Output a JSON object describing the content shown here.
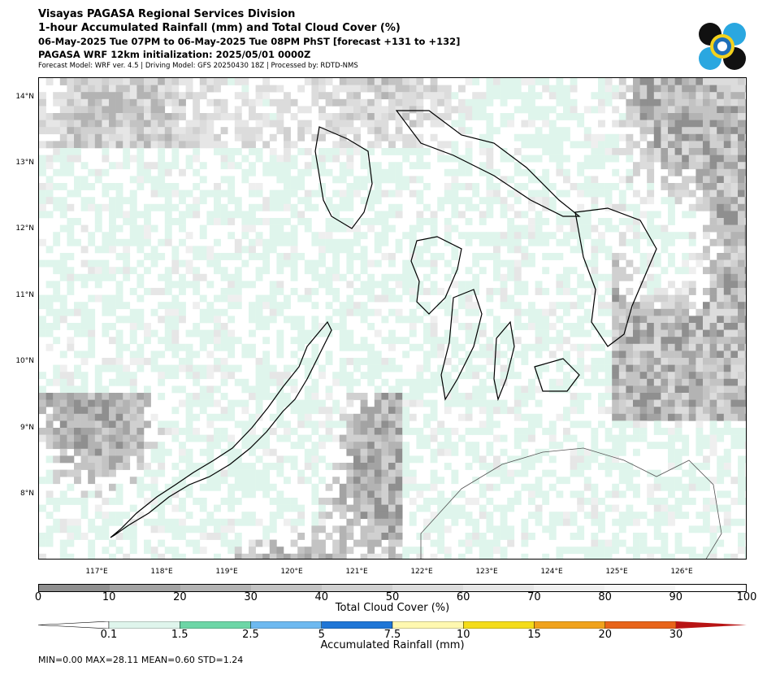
{
  "header": {
    "line1": "Visayas PAGASA Regional Services Division",
    "line2": "1-hour Accumulated Rainfall (mm) and Total Cloud Cover (%)",
    "line3": "06-May-2025 Tue 07PM to 06-May-2025 Tue 08PM PhST [forecast +131 to +132]",
    "line4": "PAGASA WRF 12km initialization: 2025/05/01 0000Z",
    "line5": "Forecast Model: WRF ver. 4.5 | Driving Model: GFS 20250430 18Z | Processed by: RDTD-NMS"
  },
  "map": {
    "lat_labels": [
      "14°N",
      "13°N",
      "12°N",
      "11°N",
      "10°N",
      "9°N",
      "8°N"
    ],
    "lon_labels": [
      "117°E",
      "118°E",
      "119°E",
      "120°E",
      "121°E",
      "122°E",
      "123°E",
      "124°E",
      "125°E",
      "126°E"
    ]
  },
  "cloud_bar": {
    "title": "Total Cloud Cover (%)",
    "ticks": [
      "0",
      "10",
      "20",
      "30",
      "40",
      "50",
      "60",
      "70",
      "80",
      "90",
      "100"
    ],
    "colors": [
      "#8f8f8f",
      "#a3a3a3",
      "#b3b3b3",
      "#c3c3c3",
      "#d0d0d0",
      "#dcdcdc",
      "#e6e6e6",
      "#efefef",
      "#f6f6f6",
      "#ffffff"
    ]
  },
  "rain_bar": {
    "title": "Accumulated Rainfall (mm)",
    "ticks": [
      "0.1",
      "1.5",
      "2.5",
      "5",
      "7.5",
      "10",
      "15",
      "20",
      "30"
    ],
    "colors": [
      "#dff5ec",
      "#6dd6a6",
      "#6eb9f0",
      "#1f76d6",
      "#fff8b0",
      "#f4dc1a",
      "#f0a21c",
      "#e8641a"
    ],
    "over_color": "#b81414",
    "under_color": "#ffffff"
  },
  "stats": "MIN=0.00   MAX=28.11   MEAN=0.60   STD=1.24"
}
